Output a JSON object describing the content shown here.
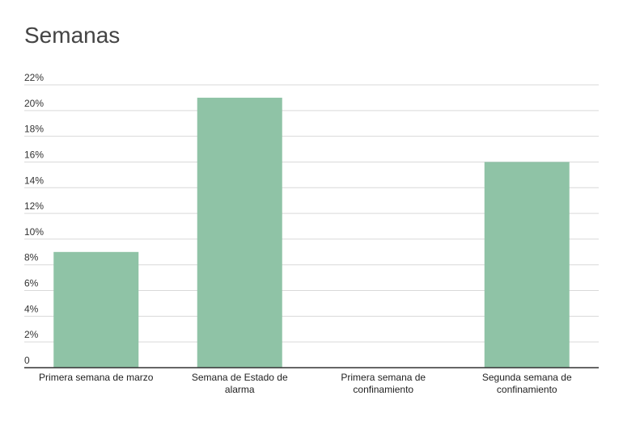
{
  "chart_data": {
    "type": "bar",
    "title": "Semanas",
    "categories": [
      [
        "Primera semana de marzo"
      ],
      [
        "Semana de Estado de",
        "alarma"
      ],
      [
        "Primera semana de",
        "confinamiento"
      ],
      [
        "Segunda semana de",
        "confinamiento"
      ]
    ],
    "values": [
      9,
      21,
      0,
      16
    ],
    "ylim": [
      0,
      22
    ],
    "yticks": [
      "0",
      "2%",
      "4%",
      "6%",
      "8%",
      "10%",
      "12%",
      "14%",
      "16%",
      "18%",
      "20%",
      "22%"
    ],
    "grid": true,
    "legend": "none",
    "bar_color": "#8fc3a6",
    "grid_color": "#d9d9d9",
    "axis_color": "#333333"
  }
}
